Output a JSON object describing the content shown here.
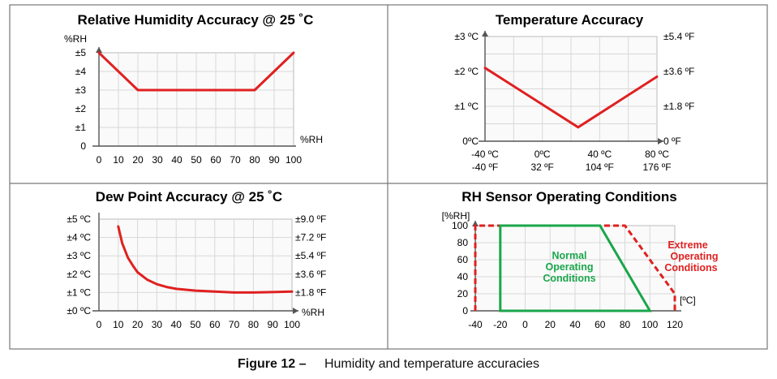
{
  "caption": {
    "number": "Figure 12 –",
    "text": "Humidity and temperature accuracies"
  },
  "colors": {
    "curve": "#e02020",
    "normal": "#1aa64a",
    "extreme": "#e02020",
    "grid": "#d8d8d8",
    "frame": "#555555"
  },
  "chart_data": [
    {
      "type": "line",
      "title": "Relative Humidity Accuracy @ 25 ˚C",
      "ylabel": "%RH",
      "xlabel": "%RH",
      "xlim": [
        0,
        100
      ],
      "ylim": [
        0,
        5
      ],
      "x_ticks": [
        "0",
        "10",
        "20",
        "30",
        "40",
        "50",
        "60",
        "70",
        "80",
        "90",
        "100"
      ],
      "y_ticks": [
        "0",
        "±1",
        "±2",
        "±3",
        "±4",
        "±5"
      ],
      "grid": true,
      "series": [
        {
          "x": [
            0,
            20,
            80,
            100
          ],
          "y": [
            5,
            3,
            3,
            5
          ]
        }
      ]
    },
    {
      "type": "line",
      "title": "Temperature Accuracy",
      "xlim": [
        -40,
        80
      ],
      "ylim": [
        0,
        3
      ],
      "x_ticks_celsius": [
        "-40 ºC",
        "0ºC",
        "40 ºC",
        "80 ºC"
      ],
      "x_ticks_fahrenheit": [
        "-40 ºF",
        "32 ºF",
        "104 ºF",
        "176 ºF"
      ],
      "y_ticks_left": [
        "0ºC",
        "±1 ºC",
        "±2 ºC",
        "±3 ºC"
      ],
      "y_ticks_right": [
        "0 ºF",
        "±1.8 ºF",
        "±3.6 ºF",
        "±5.4 ºF"
      ],
      "grid": true,
      "series": [
        {
          "x": [
            -40,
            25,
            80
          ],
          "y": [
            2.1,
            0.4,
            1.85
          ]
        }
      ]
    },
    {
      "type": "line",
      "title": "Dew Point Accuracy @ 25 ˚C",
      "xlabel": "%RH",
      "xlim": [
        0,
        100
      ],
      "ylim": [
        0,
        5
      ],
      "x_ticks": [
        "0",
        "10",
        "20",
        "30",
        "40",
        "50",
        "60",
        "70",
        "80",
        "90",
        "100"
      ],
      "y_ticks_left": [
        "±0 ºC",
        "±1 ºC",
        "±2 ºC",
        "±3 ºC",
        "±4 ºC",
        "±5 ºC"
      ],
      "y_ticks_right": [
        "±1.8 ºF",
        "±3.6 ºF",
        "±5.4 ºF",
        "±7.2 ºF",
        "±9.0 ºF"
      ],
      "grid": true,
      "series": [
        {
          "x": [
            10,
            12,
            15,
            18,
            20,
            25,
            30,
            35,
            40,
            50,
            60,
            70,
            80,
            90,
            100
          ],
          "y": [
            4.6,
            3.7,
            2.9,
            2.4,
            2.1,
            1.7,
            1.45,
            1.3,
            1.2,
            1.1,
            1.05,
            1.0,
            1.0,
            1.02,
            1.05
          ]
        }
      ]
    },
    {
      "type": "area",
      "title": "RH Sensor Operating Conditions",
      "ylabel": "[%RH]",
      "xlabel": "[ºC]",
      "xlim": [
        -40,
        120
      ],
      "ylim": [
        0,
        100
      ],
      "x_ticks": [
        "-40",
        "-20",
        "0",
        "20",
        "40",
        "60",
        "80",
        "100",
        "120"
      ],
      "y_ticks": [
        "0",
        "20",
        "40",
        "60",
        "80",
        "100"
      ],
      "grid": true,
      "regions": [
        {
          "name": "Normal Operating Conditions",
          "label_lines": [
            "Normal",
            "Operating",
            "Conditions"
          ],
          "polygon": [
            [
              -20,
              0
            ],
            [
              -20,
              100
            ],
            [
              60,
              100
            ],
            [
              100,
              0
            ]
          ]
        },
        {
          "name": "Extreme Operating Conditions",
          "label_lines": [
            "Extreme",
            "Operating",
            "Conditions"
          ],
          "polygon": [
            [
              -40,
              0
            ],
            [
              -40,
              100
            ],
            [
              80,
              100
            ],
            [
              120,
              20
            ],
            [
              120,
              0
            ]
          ]
        }
      ]
    }
  ]
}
